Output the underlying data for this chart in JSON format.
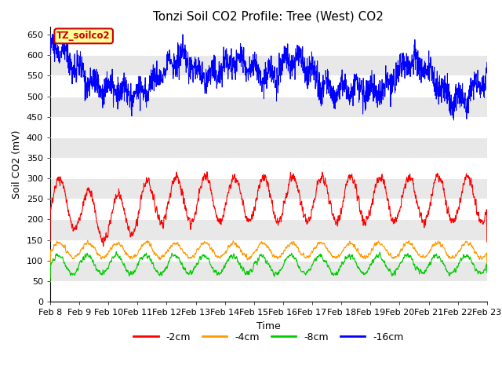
{
  "title": "Tonzi Soil CO2 Profile: Tree (West) CO2",
  "ylabel": "Soil CO2 (mV)",
  "xlabel": "Time",
  "ylim": [
    0,
    670
  ],
  "yticks": [
    0,
    50,
    100,
    150,
    200,
    250,
    300,
    350,
    400,
    450,
    500,
    550,
    600,
    650
  ],
  "x_labels": [
    "Feb 8",
    "Feb 9",
    "Feb 10",
    "Feb 11",
    "Feb 12",
    "Feb 13",
    "Feb 14",
    "Feb 15",
    "Feb 16",
    "Feb 17",
    "Feb 18",
    "Feb 19",
    "Feb 20",
    "Feb 21",
    "Feb 22",
    "Feb 23"
  ],
  "n_days": 16,
  "annotation_text": "TZ_soilco2",
  "annotation_color": "#cc0000",
  "annotation_box_color": "#ffff99",
  "background_bands": [
    {
      "ymin": 50,
      "ymax": 100,
      "color": "#e8e8e8"
    },
    {
      "ymin": 150,
      "ymax": 200,
      "color": "#e8e8e8"
    },
    {
      "ymin": 250,
      "ymax": 300,
      "color": "#e8e8e8"
    },
    {
      "ymin": 350,
      "ymax": 400,
      "color": "#e8e8e8"
    },
    {
      "ymin": 450,
      "ymax": 500,
      "color": "#e8e8e8"
    },
    {
      "ymin": 550,
      "ymax": 600,
      "color": "#e8e8e8"
    }
  ],
  "series": {
    "minus2cm": {
      "color": "#ff0000",
      "label": "-2cm"
    },
    "minus4cm": {
      "color": "#ff9900",
      "label": "-4cm"
    },
    "minus8cm": {
      "color": "#00cc00",
      "label": "-8cm"
    },
    "minus16cm": {
      "color": "#0000ff",
      "label": "-16cm"
    }
  },
  "title_fontsize": 11,
  "label_fontsize": 9,
  "tick_fontsize": 8,
  "figsize": [
    6.4,
    4.8
  ],
  "dpi": 100
}
